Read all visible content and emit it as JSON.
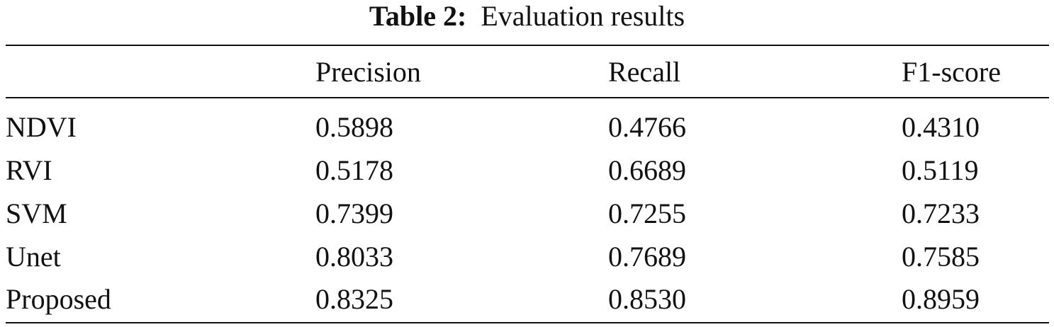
{
  "table": {
    "caption_label": "Table 2:",
    "caption_text": "Evaluation results",
    "headers": [
      "",
      "Precision",
      "Recall",
      "F1-score"
    ],
    "rows": [
      [
        "NDVI",
        "0.5898",
        "0.4766",
        "0.4310"
      ],
      [
        "RVI",
        "0.5178",
        "0.6689",
        "0.5119"
      ],
      [
        "SVM",
        "0.7399",
        "0.7255",
        "0.7233"
      ],
      [
        "Unet",
        "0.8033",
        "0.7689",
        "0.7585"
      ],
      [
        "Proposed",
        "0.8325",
        "0.8530",
        "0.8959"
      ]
    ]
  }
}
